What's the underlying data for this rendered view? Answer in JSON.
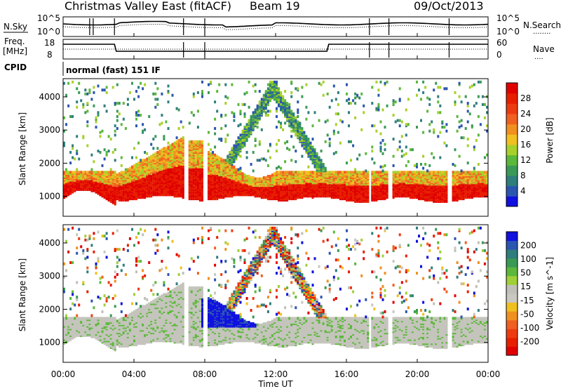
{
  "header": {
    "title": "Christmas Valley East (fitACF)",
    "beam": "Beam 19",
    "date": "09/Oct/2013"
  },
  "panels": {
    "nsky_label": "N.Sky",
    "nsky_ticks": [
      "10^5",
      "10^0"
    ],
    "nsearch_label": "N.Search",
    "nsearch_ticks": [
      "10^5",
      "10^0"
    ],
    "freq_label": [
      "Freq.",
      "[MHz]"
    ],
    "freq_ticks": [
      "18",
      "8"
    ],
    "nave_label": "Nave",
    "nave_ticks": [
      "60",
      "0"
    ],
    "cpid_label": "CPID",
    "cpid_value": "normal (fast) 151 IF",
    "nsearch_dots": "........",
    "nave_dots": "...."
  },
  "chart_data": [
    {
      "type": "heatmap",
      "name": "power",
      "xlabel": "Time UT",
      "ylabel": "Slant Range [km]",
      "xlim": [
        0,
        24
      ],
      "ylim": [
        400,
        4550
      ],
      "x_ticks": [
        "00:00",
        "04:00",
        "08:00",
        "12:00",
        "16:00",
        "20:00",
        "00:00"
      ],
      "y_ticks": [
        1000,
        2000,
        3000,
        4000
      ],
      "colorbar": {
        "label": "Power [dB]",
        "ticks": [
          "4",
          "8",
          "12",
          "16",
          "20",
          "24",
          "28"
        ],
        "range": [
          0,
          30
        ],
        "colors": [
          "#1010e0",
          "#2a55b0",
          "#2f7d7d",
          "#3a9a55",
          "#5cb83a",
          "#a8d02a",
          "#f0c020",
          "#f09020",
          "#f06020",
          "#ee3a10",
          "#e81e00",
          "#e00000"
        ]
      },
      "ground_scatter_band_km": [
        1000,
        1800
      ],
      "notes_values": {
        "main_echo_km": 1400,
        "ionospheric_arc_peak_km": 4400
      }
    },
    {
      "type": "heatmap",
      "name": "velocity",
      "xlabel": "Time UT",
      "ylabel": "Slant Range [km]",
      "xlim": [
        0,
        24
      ],
      "ylim": [
        400,
        4550
      ],
      "x_ticks": [
        "00:00",
        "04:00",
        "08:00",
        "12:00",
        "16:00",
        "20:00",
        "00:00"
      ],
      "y_ticks": [
        1000,
        2000,
        3000,
        4000
      ],
      "colorbar": {
        "label": "Velocity [m s^-1]",
        "ticks": [
          "200",
          "100",
          "50",
          "15",
          "-15",
          "-50",
          "-100",
          "-200"
        ],
        "range": [
          -250,
          250
        ],
        "colors": [
          "#1010e0",
          "#2a55b0",
          "#2f7d7d",
          "#3a9a55",
          "#5cb83a",
          "#a0d038",
          "#c0c0b8",
          "#c8c8c0",
          "#f0c020",
          "#f09020",
          "#f06020",
          "#ee3a10",
          "#e81e00",
          "#e00000"
        ]
      },
      "ground_scatter_color": "#c4c4bc"
    }
  ]
}
